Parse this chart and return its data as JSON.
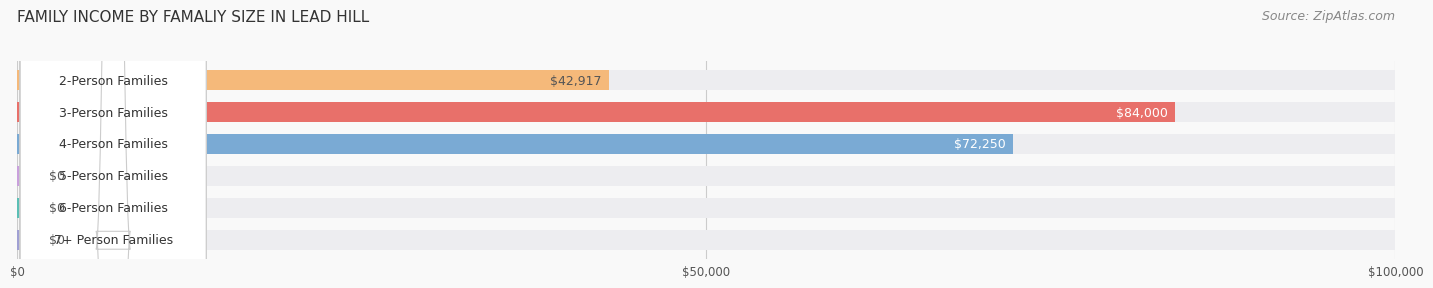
{
  "title": "FAMILY INCOME BY FAMALIY SIZE IN LEAD HILL",
  "source": "Source: ZipAtlas.com",
  "categories": [
    "2-Person Families",
    "3-Person Families",
    "4-Person Families",
    "5-Person Families",
    "6-Person Families",
    "7+ Person Families"
  ],
  "values": [
    42917,
    84000,
    72250,
    0,
    0,
    0
  ],
  "bar_colors": [
    "#f5b97a",
    "#e8706a",
    "#7aaad4",
    "#c9a0dc",
    "#5bbfb5",
    "#a0a0d4"
  ],
  "bar_bg_color": "#ededf0",
  "label_bg_color": "#ffffff",
  "value_labels": [
    "$42,917",
    "$84,000",
    "$72,250",
    "$0",
    "$0",
    "$0"
  ],
  "value_label_colors": [
    "#555555",
    "#ffffff",
    "#ffffff",
    "#555555",
    "#555555",
    "#555555"
  ],
  "xlim": [
    0,
    100000
  ],
  "xtick_labels": [
    "$0",
    "$50,000",
    "$100,000"
  ],
  "xtick_values": [
    0,
    50000,
    100000
  ],
  "title_fontsize": 11,
  "source_fontsize": 9,
  "label_fontsize": 9,
  "value_fontsize": 9,
  "bg_color": "#f9f9f9",
  "fig_width": 14.06,
  "fig_height": 3.05
}
